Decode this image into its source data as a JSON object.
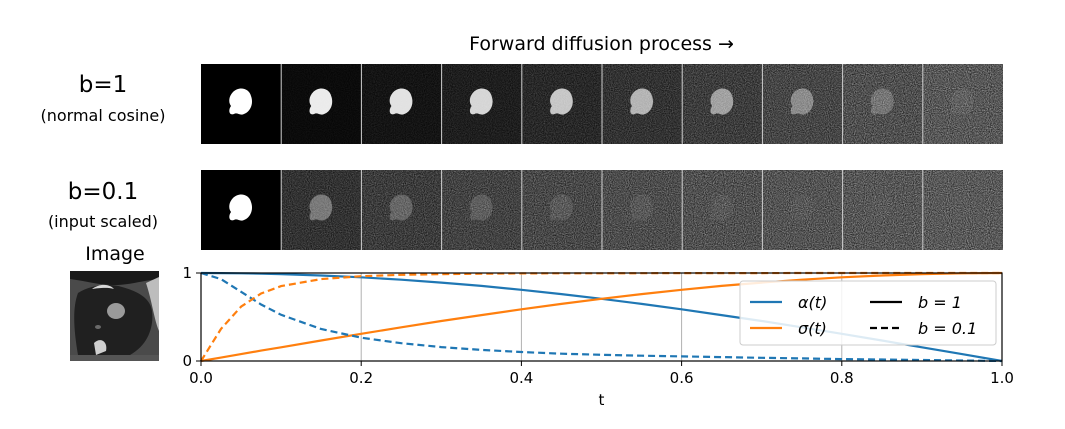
{
  "header": {
    "title": "Forward diffusion process →"
  },
  "rows": [
    {
      "title": "b=1",
      "subtitle": "(normal cosine)",
      "noise_strength": [
        0.0,
        0.12,
        0.22,
        0.33,
        0.44,
        0.55,
        0.66,
        0.76,
        0.86,
        0.95
      ],
      "signal_strength": [
        1.0,
        0.92,
        0.88,
        0.82,
        0.74,
        0.64,
        0.52,
        0.38,
        0.22,
        0.06
      ]
    },
    {
      "title": "b=0.1",
      "subtitle": "(input scaled)",
      "noise_strength": [
        0.0,
        0.55,
        0.65,
        0.72,
        0.78,
        0.83,
        0.87,
        0.9,
        0.93,
        0.96
      ],
      "signal_strength": [
        1.0,
        0.35,
        0.22,
        0.15,
        0.1,
        0.07,
        0.05,
        0.03,
        0.02,
        0.01
      ]
    }
  ],
  "image_panel": {
    "label": "Image"
  },
  "colors": {
    "alpha": "#1f77b4",
    "sigma": "#ff7f0e",
    "grid": "#b0b0b0"
  },
  "chart_data": {
    "type": "line",
    "xlabel": "t",
    "ylabel": "",
    "xlim": [
      0.0,
      1.0
    ],
    "ylim": [
      0,
      1
    ],
    "x_ticks": [
      "0.0",
      "0.2",
      "0.4",
      "0.6",
      "0.8",
      "1.0"
    ],
    "y_ticks": [
      "0",
      "1"
    ],
    "grid": "vertical",
    "legend": {
      "placement": "right",
      "entries": [
        {
          "label": "α(t)",
          "style": "color",
          "color": "#1f77b4"
        },
        {
          "label": "σ(t)",
          "style": "color",
          "color": "#ff7f0e"
        },
        {
          "label": "b = 1",
          "style": "solid"
        },
        {
          "label": "b = 0.1",
          "style": "dashed"
        }
      ]
    },
    "x": [
      0.0,
      0.025,
      0.05,
      0.075,
      0.1,
      0.15,
      0.2,
      0.25,
      0.3,
      0.35,
      0.4,
      0.45,
      0.5,
      0.55,
      0.6,
      0.65,
      0.7,
      0.75,
      0.8,
      0.85,
      0.9,
      0.95,
      1.0
    ],
    "series": [
      {
        "name": "α(t)",
        "b": "1",
        "dash": "solid",
        "color": "#1f77b4",
        "values": [
          1.0,
          0.999,
          0.997,
          0.993,
          0.988,
          0.972,
          0.951,
          0.924,
          0.891,
          0.853,
          0.809,
          0.76,
          0.707,
          0.649,
          0.588,
          0.522,
          0.454,
          0.383,
          0.309,
          0.233,
          0.156,
          0.078,
          0.0
        ]
      },
      {
        "name": "σ(t)",
        "b": "1",
        "dash": "solid",
        "color": "#ff7f0e",
        "values": [
          0.0,
          0.039,
          0.078,
          0.118,
          0.156,
          0.233,
          0.309,
          0.383,
          0.454,
          0.522,
          0.588,
          0.649,
          0.707,
          0.76,
          0.809,
          0.853,
          0.891,
          0.924,
          0.951,
          0.972,
          0.988,
          0.997,
          1.0
        ]
      },
      {
        "name": "α(t)",
        "b": "0.1",
        "dash": "dashed",
        "color": "#1f77b4",
        "values": [
          1.0,
          0.931,
          0.786,
          0.642,
          0.525,
          0.364,
          0.265,
          0.202,
          0.158,
          0.126,
          0.102,
          0.083,
          0.071,
          0.06,
          0.052,
          0.044,
          0.036,
          0.03,
          0.022,
          0.017,
          0.011,
          0.006,
          0.0
        ]
      },
      {
        "name": "σ(t)",
        "b": "0.1",
        "dash": "dashed",
        "color": "#ff7f0e",
        "values": [
          0.0,
          0.365,
          0.618,
          0.767,
          0.851,
          0.931,
          0.964,
          0.979,
          0.987,
          0.992,
          0.995,
          0.997,
          0.997,
          0.998,
          0.999,
          0.999,
          0.999,
          1.0,
          1.0,
          1.0,
          1.0,
          1.0,
          1.0
        ]
      }
    ]
  }
}
